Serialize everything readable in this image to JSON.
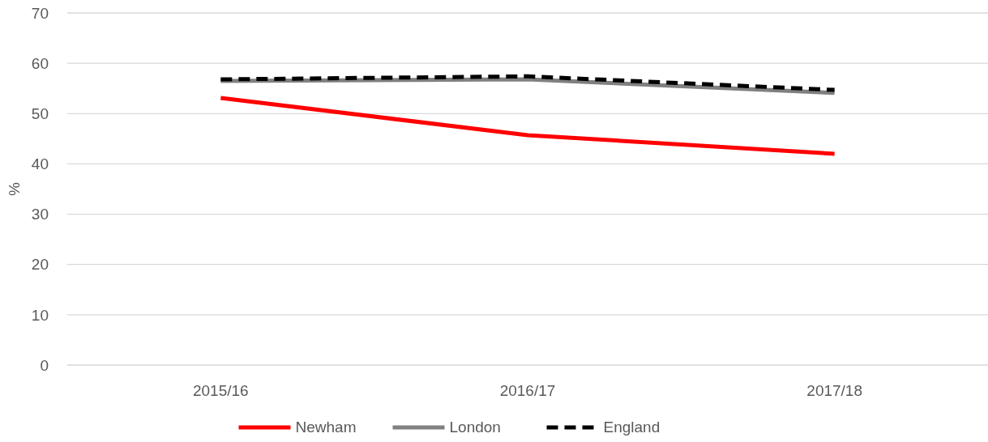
{
  "chart_data": {
    "type": "line",
    "ylabel": "%",
    "categories": [
      "2015/16",
      "2016/17",
      "2017/18"
    ],
    "series": [
      {
        "name": "Newham",
        "color": "#ff0000",
        "values": [
          53.1,
          45.7,
          42.0
        ]
      },
      {
        "name": "London",
        "color": "#808080",
        "values": [
          56.5,
          56.8,
          54.1
        ]
      },
      {
        "name": "England",
        "color": "#000000",
        "values": [
          56.8,
          57.4,
          54.7
        ],
        "line_style": "dashed"
      }
    ],
    "ylim": [
      0,
      70
    ],
    "yticks": [
      0,
      10,
      20,
      30,
      40,
      50,
      60,
      70
    ],
    "grid": "y",
    "legend": "bottom"
  }
}
